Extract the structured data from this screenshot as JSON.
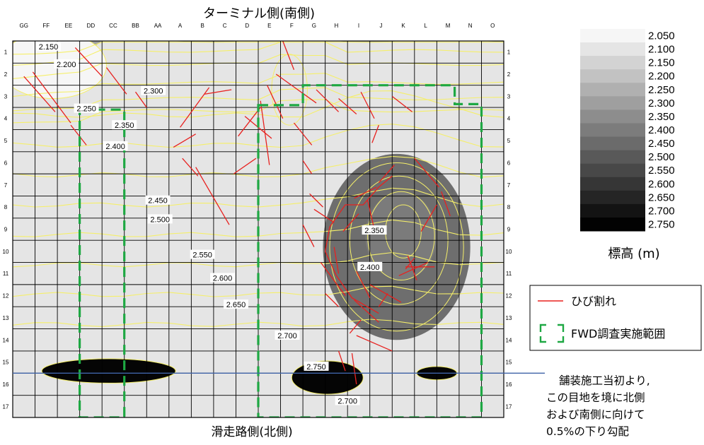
{
  "chart_data": {
    "type": "heatmap",
    "title": "ターミナル側(南側)",
    "xlabel": "滑走路側(北側)",
    "columns": [
      "GG",
      "FF",
      "EE",
      "DD",
      "CC",
      "BB",
      "AA",
      "A",
      "B",
      "C",
      "D",
      "E",
      "F",
      "G",
      "H",
      "I",
      "J",
      "K",
      "L",
      "M",
      "N",
      "O"
    ],
    "rows": [
      "1",
      "2",
      "3",
      "4",
      "5",
      "6",
      "7",
      "8",
      "9",
      "10",
      "11",
      "12",
      "13",
      "14",
      "15",
      "16",
      "17"
    ],
    "contour_labels": [
      {
        "text": "2.150",
        "col": 1.6,
        "row": 0.25
      },
      {
        "text": "2.200",
        "col": 2.4,
        "row": 1.05
      },
      {
        "text": "2.300",
        "col": 6.3,
        "row": 2.25
      },
      {
        "text": "2.250",
        "col": 3.3,
        "row": 3.05
      },
      {
        "text": "2.350",
        "col": 5.0,
        "row": 3.8
      },
      {
        "text": "2.400",
        "col": 4.6,
        "row": 4.75
      },
      {
        "text": "2.450",
        "col": 6.5,
        "row": 7.2
      },
      {
        "text": "2.500",
        "col": 6.6,
        "row": 8.05
      },
      {
        "text": "2.550",
        "col": 8.5,
        "row": 9.65
      },
      {
        "text": "2.600",
        "col": 9.4,
        "row": 10.7
      },
      {
        "text": "2.650",
        "col": 10.0,
        "row": 11.9
      },
      {
        "text": "2.700",
        "col": 12.3,
        "row": 13.3
      },
      {
        "text": "2.750",
        "col": 13.6,
        "row": 14.7
      },
      {
        "text": "2.700",
        "col": 15.0,
        "row": 16.25
      },
      {
        "text": "2.350",
        "col": 16.2,
        "row": 8.55
      },
      {
        "text": "2.400",
        "col": 16.0,
        "row": 10.2
      }
    ],
    "legend": {
      "caption": "標高 (m)",
      "levels": [
        "2.050",
        "2.100",
        "2.150",
        "2.200",
        "2.250",
        "2.300",
        "2.350",
        "2.400",
        "2.450",
        "2.500",
        "2.550",
        "2.600",
        "2.650",
        "2.700",
        "2.750"
      ]
    },
    "series_legend": [
      {
        "key": "crack",
        "label": "ひび割れ",
        "color": "#e8211f"
      },
      {
        "key": "fwd",
        "label": "FWD調査実施範囲",
        "color": "#1ea843"
      }
    ],
    "annotation": {
      "lines": [
        "舗装施工当初より,",
        "この目地を境に北側",
        "および南側に向けて",
        "0.5%の下り勾配"
      ],
      "joint_row": 15.0,
      "color": "#3f63a8"
    },
    "fwd_regions": [
      [
        [
          3,
          3.1
        ],
        [
          5,
          3.1
        ],
        [
          5,
          17
        ],
        [
          3,
          17
        ]
      ],
      [
        [
          11,
          2.9
        ],
        [
          13,
          2.9
        ],
        [
          13,
          2
        ],
        [
          19.8,
          2
        ],
        [
          19.8,
          2.85
        ],
        [
          21,
          2.85
        ],
        [
          21,
          17
        ],
        [
          11,
          17
        ]
      ]
    ]
  }
}
